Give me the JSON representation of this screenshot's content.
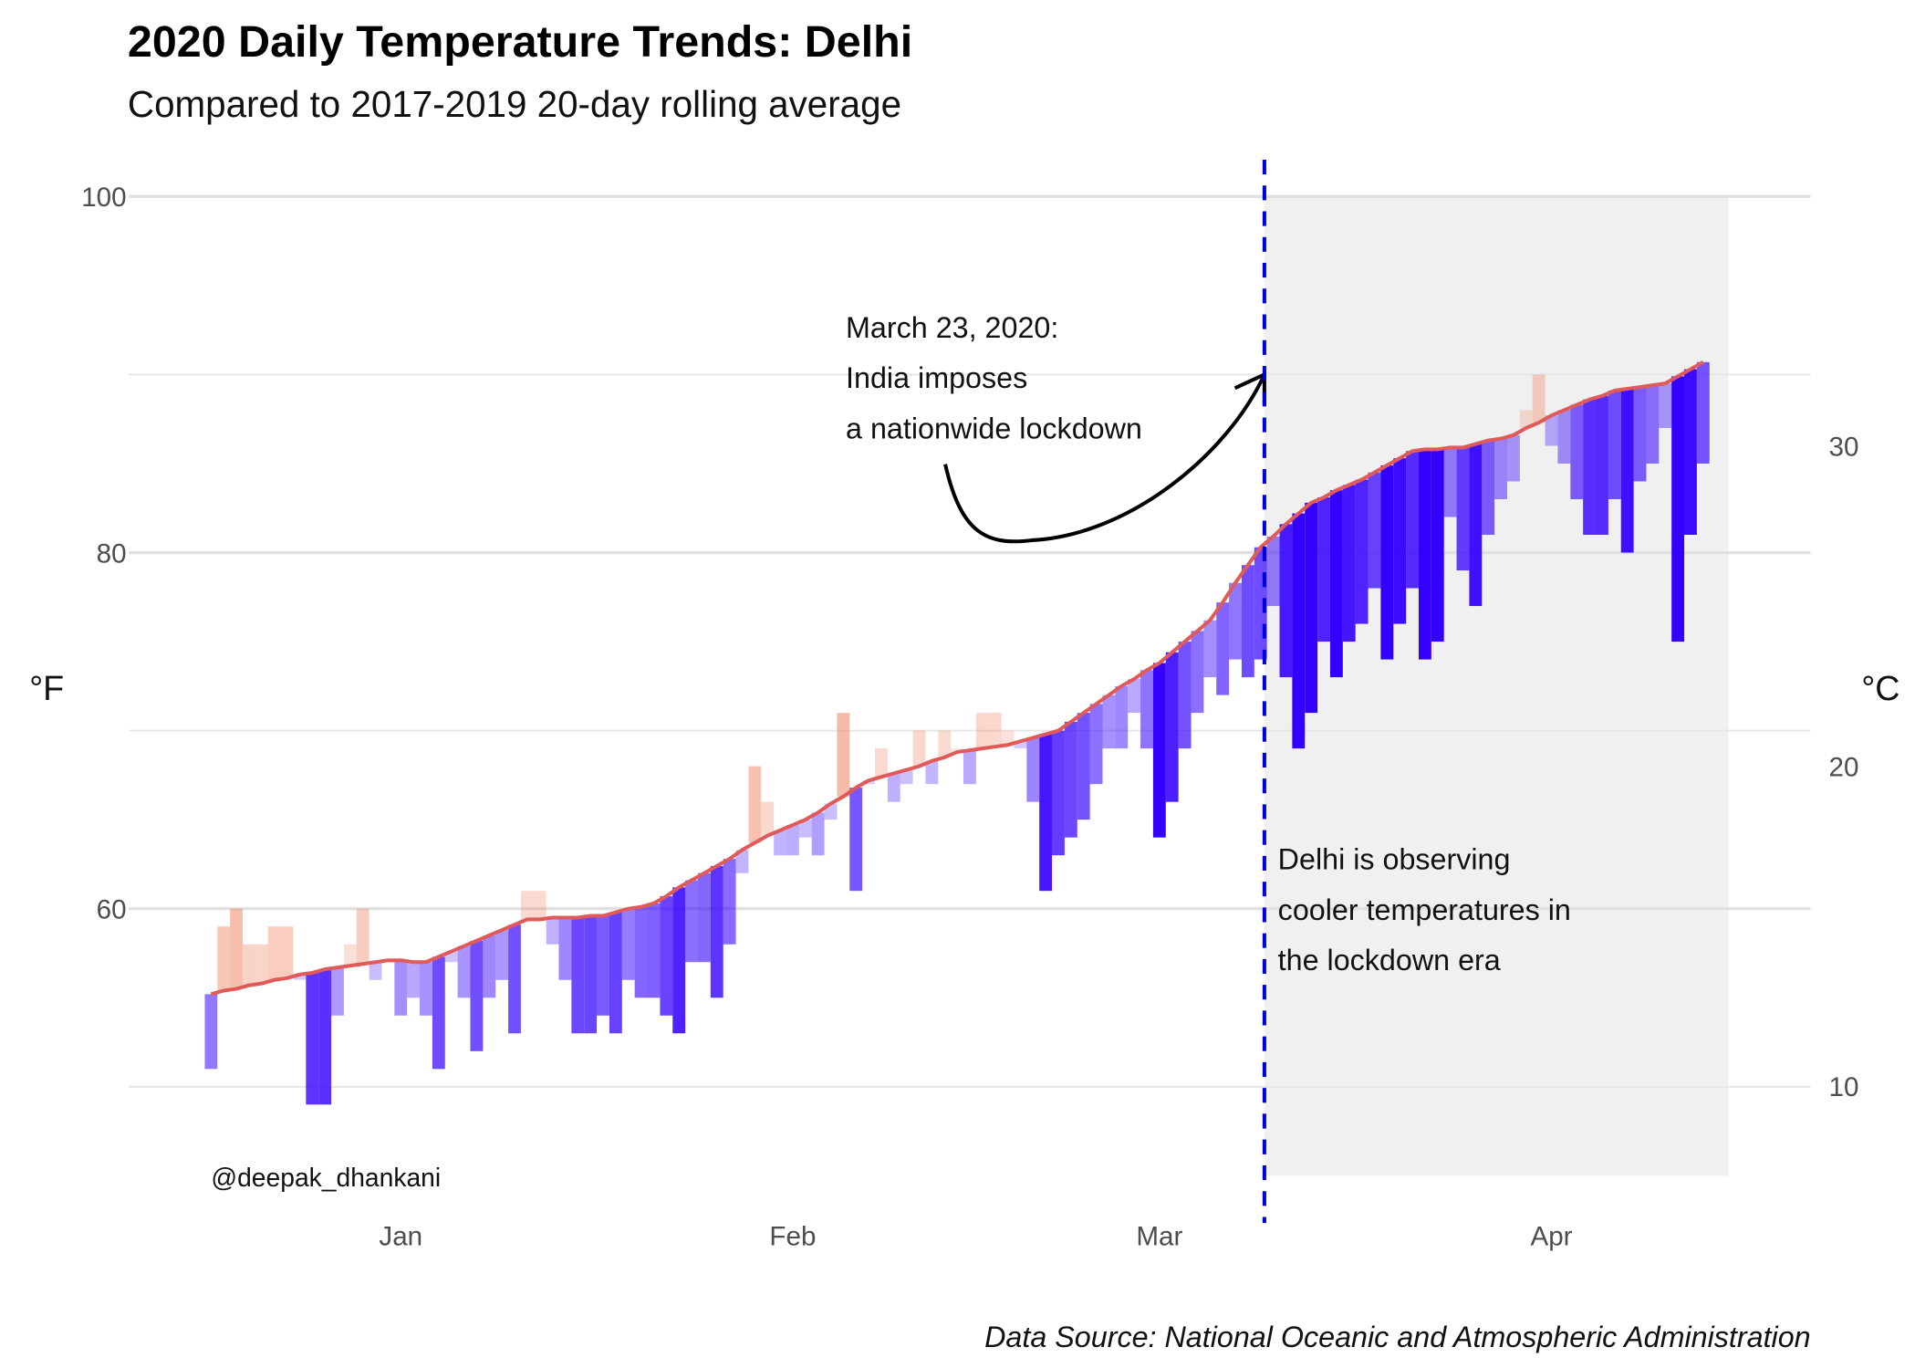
{
  "chart_data": {
    "type": "diverging-bar",
    "title": "2020 Daily Temperature Trends: Delhi",
    "subtitle": "Compared to 2017-2019 20-day rolling average",
    "y_label": "°F",
    "y2_label": "°C",
    "caption": "Data Source: National Oceanic and Atmospheric Administration",
    "credit": "@deepak_dhankani",
    "annotations": [
      {
        "lines": [
          "March 23, 2020:",
          "India imposes",
          "a nationwide lockdown"
        ]
      },
      {
        "lines": [
          "Delhi is observing",
          "cooler temperatures in",
          "the lockdown era"
        ]
      }
    ],
    "x": [
      1,
      2,
      3,
      4,
      5,
      6,
      7,
      8,
      9,
      10,
      11,
      12,
      13,
      14,
      15,
      16,
      17,
      18,
      19,
      20,
      21,
      22,
      23,
      24,
      25,
      26,
      27,
      28,
      29,
      30,
      31,
      32,
      33,
      34,
      35,
      36,
      37,
      38,
      39,
      40,
      41,
      42,
      43,
      44,
      45,
      46,
      47,
      48,
      49,
      50,
      51,
      52,
      53,
      54,
      55,
      56,
      57,
      58,
      59,
      60,
      61,
      62,
      63,
      64,
      65,
      66,
      67,
      68,
      69,
      70,
      71,
      72,
      73,
      74,
      75,
      76,
      77,
      78,
      79,
      80,
      81,
      82,
      83,
      84,
      85,
      86,
      87,
      88,
      89,
      90,
      91,
      92,
      93,
      94,
      95,
      96,
      97,
      98,
      99,
      100,
      101,
      102,
      103,
      104,
      105,
      106,
      107,
      108,
      109,
      110,
      111,
      112,
      113,
      114,
      115,
      116,
      117,
      118,
      119
    ],
    "rolling_average": [
      55.2,
      55.4,
      55.5,
      55.7,
      55.8,
      56.0,
      56.1,
      56.3,
      56.4,
      56.6,
      56.7,
      56.8,
      56.9,
      57.0,
      57.1,
      57.1,
      57.0,
      57.0,
      57.3,
      57.6,
      57.9,
      58.2,
      58.5,
      58.8,
      59.1,
      59.4,
      59.4,
      59.5,
      59.5,
      59.5,
      59.6,
      59.6,
      59.8,
      60.0,
      60.1,
      60.3,
      60.7,
      61.2,
      61.6,
      62.0,
      62.4,
      62.8,
      63.3,
      63.7,
      64.1,
      64.4,
      64.7,
      65.0,
      65.4,
      65.9,
      66.3,
      66.8,
      67.2,
      67.4,
      67.6,
      67.8,
      68.0,
      68.3,
      68.5,
      68.8,
      68.9,
      69.0,
      69.1,
      69.2,
      69.4,
      69.6,
      69.8,
      70.0,
      70.5,
      71.0,
      71.5,
      72.0,
      72.5,
      72.9,
      73.4,
      73.8,
      74.4,
      75.0,
      75.6,
      76.2,
      77.2,
      78.3,
      79.3,
      80.3,
      80.9,
      81.6,
      82.2,
      82.8,
      83.1,
      83.5,
      83.8,
      84.1,
      84.5,
      84.9,
      85.3,
      85.7,
      85.8,
      85.8,
      85.9,
      85.9,
      86.1,
      86.3,
      86.4,
      86.6,
      87.0,
      87.3,
      87.7,
      88.0,
      88.3,
      88.6,
      88.8,
      89.1,
      89.2,
      89.3,
      89.4,
      89.5,
      89.9,
      90.3,
      90.7
    ],
    "temperature": [
      51,
      59,
      60,
      58,
      58,
      59,
      59,
      56,
      49,
      49,
      54,
      58,
      60,
      56,
      57,
      54,
      55,
      54,
      51,
      57,
      55,
      52,
      55,
      56,
      53,
      61,
      61,
      58,
      56,
      53,
      53,
      54,
      53,
      56,
      55,
      55,
      54,
      53,
      57,
      57,
      55,
      58,
      62,
      68,
      66,
      63,
      63,
      64,
      63,
      65,
      71,
      61,
      67,
      69,
      66,
      67,
      70,
      67,
      70,
      69,
      67,
      71,
      71,
      70,
      69,
      66,
      61,
      63,
      64,
      65,
      67,
      69,
      69,
      71,
      69,
      64,
      66,
      69,
      71,
      73,
      72,
      74,
      73,
      74,
      77,
      73,
      69,
      71,
      75,
      73,
      75,
      76,
      78,
      74,
      76,
      78,
      74,
      75,
      82,
      79,
      77,
      81,
      83,
      84,
      88,
      90,
      86,
      85,
      83,
      81,
      81,
      83,
      80,
      84,
      85,
      87,
      75,
      81,
      85
    ],
    "color_above": "#f08a6a",
    "color_below": "#3300ff",
    "line_color": "#e05a5a",
    "xlim": [
      -5.5,
      127.5
    ],
    "xticks": [
      {
        "value": 16,
        "label": "Jan"
      },
      {
        "value": 47,
        "label": "Feb"
      },
      {
        "value": 76,
        "label": "Mar"
      },
      {
        "value": 107,
        "label": "Apr"
      }
    ],
    "ylim": [
      45,
      100
    ],
    "yticks": [
      60,
      80,
      100
    ],
    "yminor": [
      50,
      70,
      90
    ],
    "y2lim": [
      7.2,
      37.8
    ],
    "y2ticks": [
      10,
      20,
      30
    ],
    "lockdown_x": 84.3,
    "shade": [
      84.3,
      121
    ],
    "grid": true
  }
}
